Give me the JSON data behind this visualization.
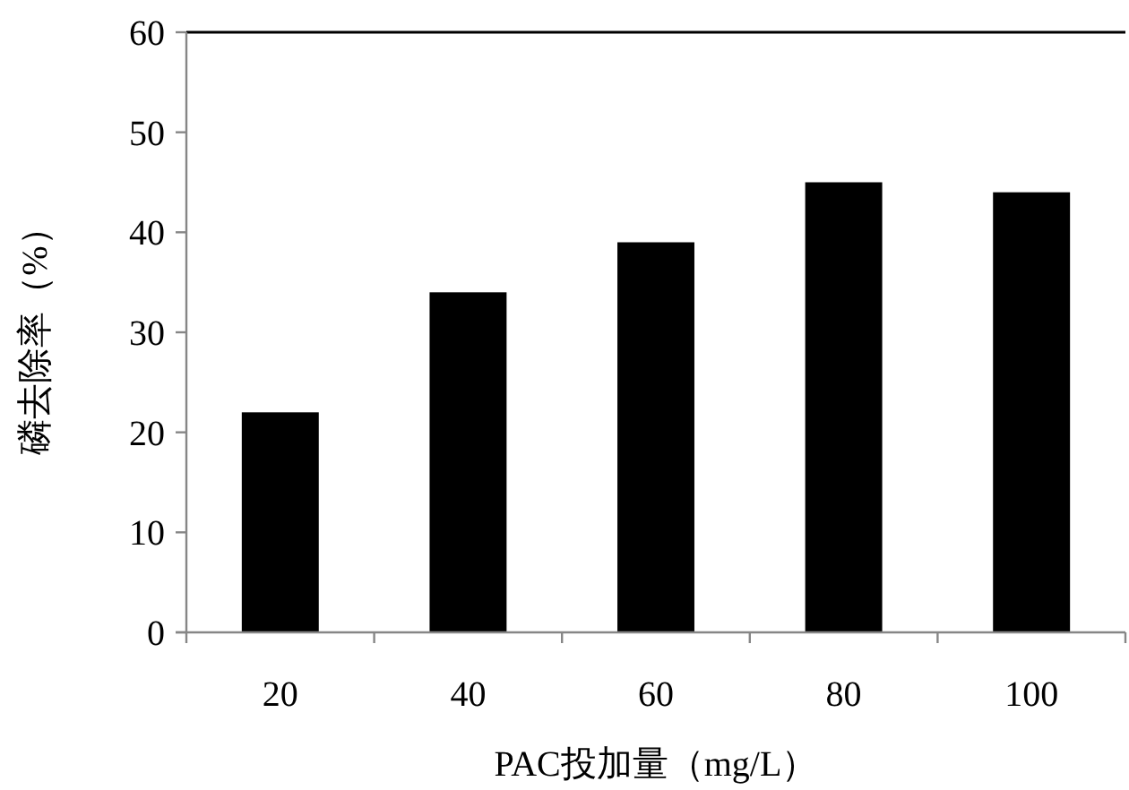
{
  "chart_data": {
    "type": "bar",
    "xlabel": "PAC投加量（mg/L）",
    "ylabel": "磷去除率（%）",
    "categories": [
      "20",
      "40",
      "60",
      "80",
      "100"
    ],
    "series": [
      {
        "color": "#000000",
        "values": [
          22,
          34,
          39,
          45,
          44
        ]
      }
    ],
    "ylim": [
      0,
      60
    ],
    "yticks": [
      0,
      10,
      20,
      30,
      40,
      50,
      60
    ],
    "grid": false
  }
}
